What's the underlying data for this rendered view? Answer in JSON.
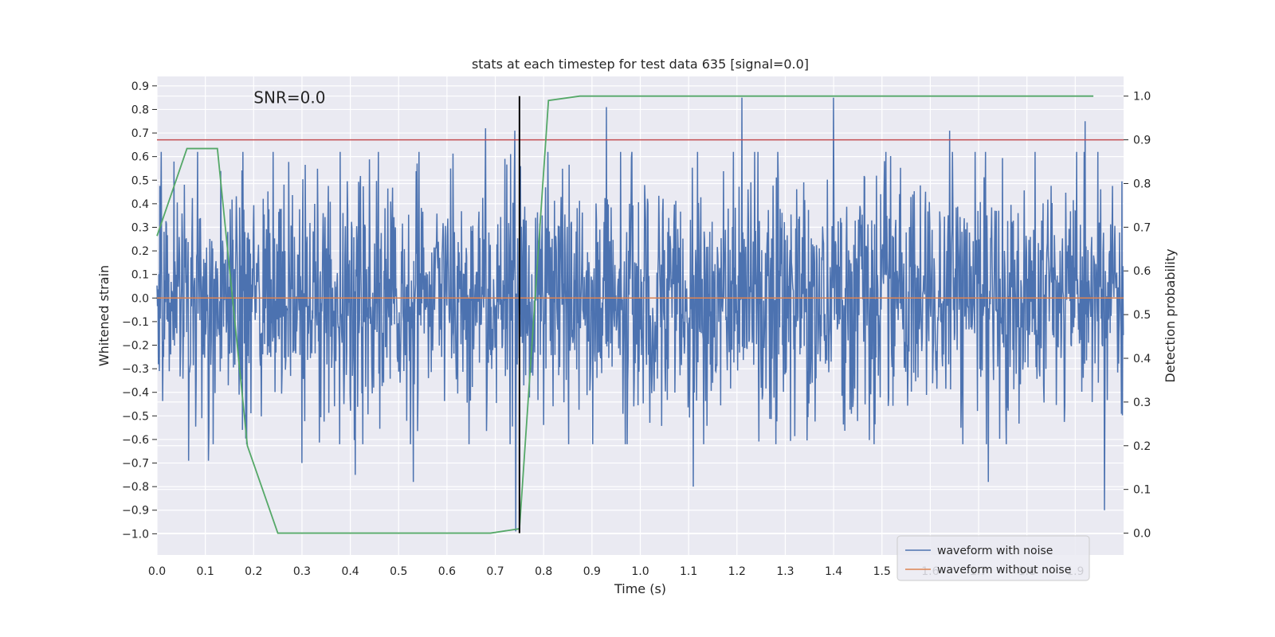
{
  "chart_data": {
    "type": "line",
    "title": "stats at each timestep for test data 635 [signal=0.0]",
    "annotation": "SNR=0.0",
    "xlabel": "Time (s)",
    "ylabel": "Whitened strain",
    "y2label": "Detection probability",
    "xlim": [
      0.0,
      2.0
    ],
    "ylim": [
      -1.09,
      0.94
    ],
    "y2lim": [
      -0.05,
      1.045
    ],
    "xticks": [
      "0.0",
      "0.1",
      "0.2",
      "0.3",
      "0.4",
      "0.5",
      "0.6",
      "0.7",
      "0.8",
      "0.9",
      "1.0",
      "1.1",
      "1.2",
      "1.3",
      "1.4",
      "1.5",
      "1.6",
      "1.7",
      "1.8",
      "1.9"
    ],
    "yticks": [
      "0.9",
      "0.8",
      "0.7",
      "0.6",
      "0.5",
      "0.4",
      "0.3",
      "0.2",
      "0.1",
      "0.0",
      "−0.1",
      "−0.2",
      "−0.3",
      "−0.4",
      "−0.5",
      "−0.6",
      "−0.7",
      "−0.8",
      "−0.9",
      "−1.0"
    ],
    "y2ticks": [
      "1.0",
      "0.9",
      "0.8",
      "0.7",
      "0.6",
      "0.5",
      "0.4",
      "0.3",
      "0.2",
      "0.1",
      "0.0"
    ],
    "threshold": 0.9,
    "marker_time": 0.75,
    "series": [
      {
        "name": "waveform with noise",
        "color": "#4c72b0",
        "axis": "left",
        "kind": "noise",
        "amplitude_std": 0.25,
        "samples": 2048,
        "peaks": [
          {
            "t": 0.065,
            "y": -0.69
          },
          {
            "t": 0.106,
            "y": -0.69
          },
          {
            "t": 0.3,
            "y": -0.7
          },
          {
            "t": 0.41,
            "y": -0.75
          },
          {
            "t": 0.53,
            "y": -0.78
          },
          {
            "t": 0.68,
            "y": 0.72
          },
          {
            "t": 0.74,
            "y": 0.71
          },
          {
            "t": 0.742,
            "y": -0.99
          },
          {
            "t": 0.93,
            "y": 0.81
          },
          {
            "t": 1.11,
            "y": -0.8
          },
          {
            "t": 1.21,
            "y": 0.85
          },
          {
            "t": 1.4,
            "y": 0.85
          },
          {
            "t": 1.64,
            "y": 0.71
          },
          {
            "t": 1.72,
            "y": -0.78
          },
          {
            "t": 1.92,
            "y": 0.75
          },
          {
            "t": 1.96,
            "y": -0.9
          }
        ]
      },
      {
        "name": "waveform without noise",
        "color": "#dd8452",
        "axis": "left",
        "x": [
          0.0,
          2.0
        ],
        "y": [
          0.0,
          0.0
        ]
      },
      {
        "name": "detection probability",
        "color": "#55a868",
        "axis": "right",
        "x": [
          0.0,
          0.062,
          0.125,
          0.187,
          0.25,
          0.3,
          0.69,
          0.75,
          0.81,
          0.875,
          1.0,
          1.5,
          1.9375
        ],
        "y": [
          0.68,
          0.88,
          0.88,
          0.2,
          0.0,
          0.0,
          0.0,
          0.01,
          0.99,
          1.0,
          1.0,
          1.0,
          1.0
        ]
      }
    ],
    "legend": {
      "placement": "lower-right",
      "entries": [
        {
          "label": "waveform with noise",
          "color": "#4c72b0"
        },
        {
          "label": "waveform without noise",
          "color": "#dd8452"
        }
      ]
    },
    "colors": {
      "plot_background": "#eaeaf2",
      "grid": "#ffffff",
      "threshold_line": "#c44e52",
      "marker_line": "#000000",
      "text": "#262626"
    }
  }
}
